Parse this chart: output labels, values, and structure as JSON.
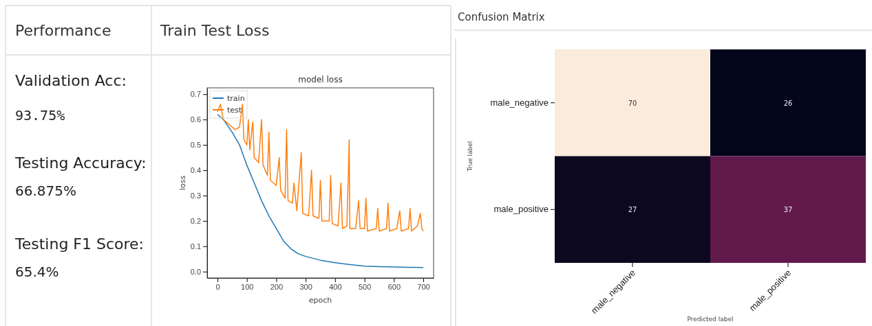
{
  "chart_data": [
    {
      "type": "other",
      "title": "Performance",
      "annotations": [
        "Validation Acc:",
        "93.75%",
        "Testing Accuracy:",
        "66.875%",
        "Testing F1 Score:",
        "65.4%"
      ]
    },
    {
      "type": "line",
      "title": "Train Test Loss",
      "subtitle": "model loss",
      "xlabel": "epoch",
      "ylabel": "loss",
      "xlim": [
        -35,
        735
      ],
      "ylim": [
        -0.025,
        0.725
      ],
      "xticks": [
        0,
        100,
        200,
        300,
        400,
        500,
        600,
        700
      ],
      "yticks": [
        {
          "value": 0,
          "label": "0.0"
        },
        0.1,
        0.2,
        0.3,
        0.4,
        0.5,
        0.6,
        0.7
      ],
      "grid": false,
      "legend": "top left",
      "marker": "none",
      "line_style": "solid",
      "series": [
        {
          "name": "train",
          "color": "#1f77b4",
          "x": [
            0,
            20,
            50,
            75,
            100,
            125,
            150,
            175,
            200,
            225,
            250,
            275,
            300,
            350,
            400,
            450,
            500,
            550,
            600,
            650,
            700
          ],
          "values": [
            0.62,
            0.6,
            0.55,
            0.5,
            0.42,
            0.35,
            0.28,
            0.22,
            0.17,
            0.12,
            0.09,
            0.07,
            0.06,
            0.045,
            0.035,
            0.028,
            0.022,
            0.02,
            0.018,
            0.017,
            0.016
          ]
        },
        {
          "name": "test",
          "color": "#ff7f0e",
          "x": [
            0,
            10,
            20,
            40,
            60,
            75,
            85,
            90,
            100,
            105,
            110,
            120,
            125,
            140,
            150,
            155,
            170,
            175,
            180,
            200,
            210,
            215,
            230,
            235,
            240,
            255,
            260,
            270,
            285,
            290,
            310,
            320,
            325,
            345,
            350,
            355,
            380,
            385,
            390,
            410,
            420,
            425,
            440,
            445,
            448,
            450,
            470,
            480,
            485,
            500,
            505,
            510,
            540,
            545,
            550,
            575,
            580,
            585,
            610,
            620,
            625,
            650,
            655,
            660,
            680,
            690,
            695,
            700
          ],
          "values": [
            0.63,
            0.66,
            0.6,
            0.58,
            0.56,
            0.57,
            0.66,
            0.52,
            0.5,
            0.6,
            0.48,
            0.59,
            0.45,
            0.43,
            0.6,
            0.42,
            0.38,
            0.55,
            0.36,
            0.34,
            0.45,
            0.32,
            0.29,
            0.56,
            0.28,
            0.27,
            0.35,
            0.24,
            0.47,
            0.23,
            0.22,
            0.4,
            0.22,
            0.21,
            0.36,
            0.2,
            0.2,
            0.38,
            0.19,
            0.18,
            0.35,
            0.17,
            0.18,
            0.38,
            0.52,
            0.17,
            0.17,
            0.28,
            0.17,
            0.17,
            0.29,
            0.16,
            0.17,
            0.25,
            0.16,
            0.17,
            0.27,
            0.16,
            0.17,
            0.24,
            0.16,
            0.17,
            0.25,
            0.16,
            0.18,
            0.23,
            0.17,
            0.16
          ]
        }
      ]
    },
    {
      "type": "heatmap",
      "title": "Confusion Matrix",
      "xlabel": "Predicted label",
      "ylabel": "True label",
      "categories": [
        "male_negative",
        "male_positive"
      ],
      "y_categories": [
        "male_negative",
        "male_positive"
      ],
      "cells": [
        [
          70,
          26
        ],
        [
          27,
          37
        ]
      ],
      "data_labels": true
    }
  ]
}
